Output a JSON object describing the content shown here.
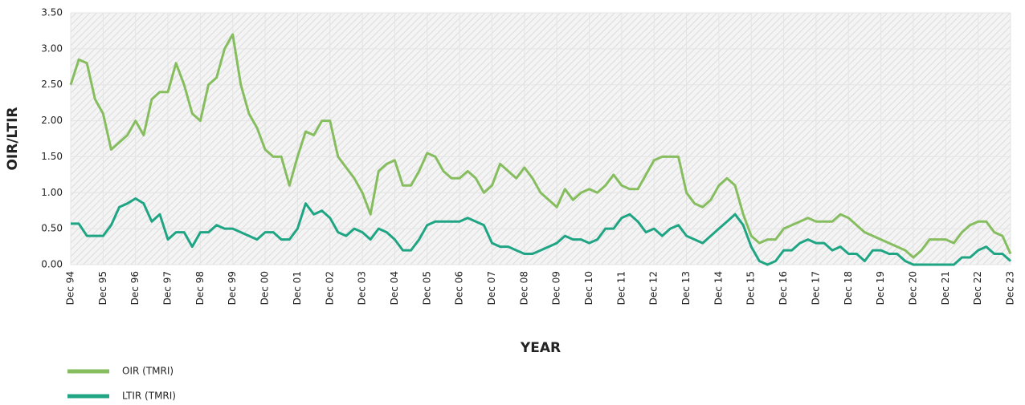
{
  "chart_data": {
    "type": "line",
    "xlabel": "YEAR",
    "ylabel": "OIR/LTIR",
    "categories": [
      "Dec 94",
      null,
      null,
      null,
      "Dec 95",
      null,
      null,
      null,
      "Dec 96",
      null,
      null,
      null,
      "Dec 97",
      null,
      null,
      null,
      "Dec 98",
      null,
      null,
      null,
      "Dec 99",
      null,
      null,
      null,
      "Dec 00",
      null,
      null,
      null,
      "Dec 01",
      null,
      null,
      null,
      "Dec 02",
      null,
      null,
      null,
      "Dec 03",
      null,
      null,
      null,
      "Dec 04",
      null,
      null,
      null,
      "Dec 05",
      null,
      null,
      null,
      "Dec 06",
      null,
      null,
      null,
      "Dec 07",
      null,
      null,
      null,
      "Dec 08",
      null,
      null,
      null,
      "Dec 09",
      null,
      null,
      null,
      "Dec 10",
      null,
      null,
      null,
      "Dec 11",
      null,
      null,
      null,
      "Dec 12",
      null,
      null,
      null,
      "Dec 13",
      null,
      null,
      null,
      "Dec 14",
      null,
      null,
      null,
      "Dec 15",
      null,
      null,
      null,
      "Dec 16",
      null,
      null,
      null,
      "Dec 17",
      null,
      null,
      null,
      "Dec 18",
      null,
      null,
      null,
      "Dec 19",
      null,
      null,
      null,
      "Dec 20",
      null,
      null,
      null,
      "Dec 21",
      null,
      null,
      null,
      "Dec 22",
      null,
      null,
      null,
      "Dec 23"
    ],
    "series": [
      {
        "name": "OIR (TMRI)",
        "color": "#86bd5f",
        "values": [
          2.5,
          2.85,
          2.8,
          2.3,
          2.1,
          1.6,
          1.7,
          1.8,
          2.0,
          1.8,
          2.3,
          2.4,
          2.4,
          2.8,
          2.5,
          2.1,
          2.0,
          2.5,
          2.6,
          3.0,
          3.2,
          2.5,
          2.1,
          1.9,
          1.6,
          1.5,
          1.5,
          1.1,
          1.5,
          1.85,
          1.8,
          2.0,
          2.0,
          1.5,
          1.35,
          1.2,
          1.0,
          0.7,
          1.3,
          1.4,
          1.45,
          1.1,
          1.1,
          1.3,
          1.55,
          1.5,
          1.3,
          1.2,
          1.2,
          1.3,
          1.2,
          1.0,
          1.1,
          1.4,
          1.3,
          1.2,
          1.35,
          1.2,
          1.0,
          0.9,
          0.8,
          1.05,
          0.9,
          1.0,
          1.05,
          1.0,
          1.1,
          1.25,
          1.1,
          1.05,
          1.05,
          1.25,
          1.45,
          1.5,
          1.5,
          1.5,
          1.0,
          0.85,
          0.8,
          0.9,
          1.1,
          1.2,
          1.1,
          0.7,
          0.4,
          0.3,
          0.35,
          0.35,
          0.5,
          0.55,
          0.6,
          0.65,
          0.6,
          0.6,
          0.6,
          0.7,
          0.65,
          0.55,
          0.45,
          0.4,
          0.35,
          0.3,
          0.25,
          0.2,
          0.1,
          0.2,
          0.35,
          0.35,
          0.35,
          0.3,
          0.45,
          0.55,
          0.6,
          0.6,
          0.45,
          0.4,
          0.15
        ]
      },
      {
        "name": "LTIR (TMRI)",
        "color": "#1fa584",
        "values": [
          0.57,
          0.57,
          0.4,
          0.4,
          0.4,
          0.55,
          0.8,
          0.85,
          0.92,
          0.85,
          0.6,
          0.7,
          0.35,
          0.45,
          0.45,
          0.25,
          0.45,
          0.45,
          0.55,
          0.5,
          0.5,
          0.45,
          0.4,
          0.35,
          0.45,
          0.45,
          0.35,
          0.35,
          0.5,
          0.85,
          0.7,
          0.75,
          0.65,
          0.45,
          0.4,
          0.5,
          0.45,
          0.35,
          0.5,
          0.45,
          0.35,
          0.2,
          0.2,
          0.35,
          0.55,
          0.6,
          0.6,
          0.6,
          0.6,
          0.65,
          0.6,
          0.55,
          0.3,
          0.25,
          0.25,
          0.2,
          0.15,
          0.15,
          0.2,
          0.25,
          0.3,
          0.4,
          0.35,
          0.35,
          0.3,
          0.35,
          0.5,
          0.5,
          0.65,
          0.7,
          0.6,
          0.45,
          0.5,
          0.4,
          0.5,
          0.55,
          0.4,
          0.35,
          0.3,
          0.4,
          0.5,
          0.6,
          0.7,
          0.55,
          0.25,
          0.05,
          0.0,
          0.05,
          0.2,
          0.2,
          0.3,
          0.35,
          0.3,
          0.3,
          0.2,
          0.25,
          0.15,
          0.15,
          0.05,
          0.2,
          0.2,
          0.15,
          0.15,
          0.05,
          0.0,
          0.0,
          0.0,
          0.0,
          0.0,
          0.0,
          0.1,
          0.1,
          0.2,
          0.25,
          0.15,
          0.15,
          0.05
        ]
      }
    ],
    "ylim": [
      0,
      3.5
    ],
    "yticks": [
      {
        "value": 0,
        "label": "0.00"
      },
      {
        "value": 0.5,
        "label": "0.50"
      },
      {
        "value": 1,
        "label": "1.00"
      },
      {
        "value": 1.5,
        "label": "1.50"
      },
      {
        "value": 2,
        "label": "2.00"
      },
      {
        "value": 2.5,
        "label": "2.50"
      },
      {
        "value": 3,
        "label": "3.00"
      },
      {
        "value": 3.5,
        "label": "3.50"
      }
    ],
    "grid": true
  }
}
